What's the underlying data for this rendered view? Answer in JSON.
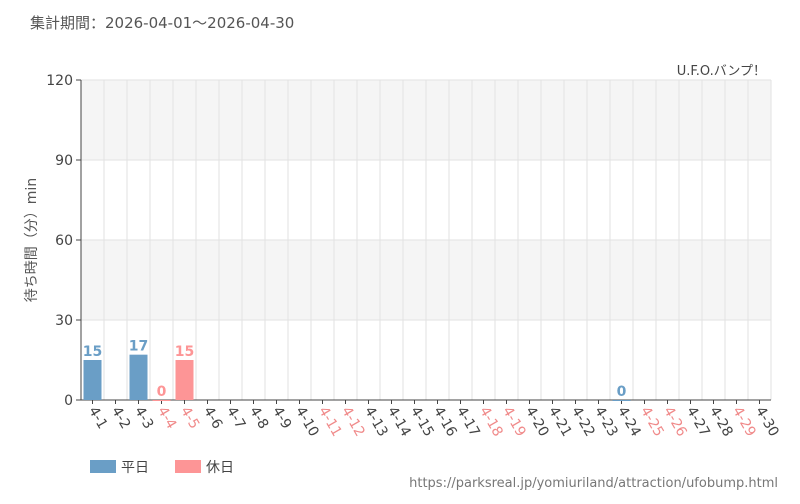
{
  "chart_data": {
    "type": "bar",
    "title": "集計期間：2026-04-01～2026-04-30",
    "subtitle": "U.F.O.バンプ！",
    "y_label": "待ち時間（分）min",
    "source": "https://parksreal.jp/yomiuriland/attraction/ufobump.html",
    "categories": [
      "4-1",
      "4-2",
      "4-3",
      "4-4",
      "4-5",
      "4-6",
      "4-7",
      "4-8",
      "4-9",
      "4-10",
      "4-11",
      "4-12",
      "4-13",
      "4-14",
      "4-15",
      "4-16",
      "4-17",
      "4-18",
      "4-19",
      "4-20",
      "4-21",
      "4-22",
      "4-23",
      "4-24",
      "4-25",
      "4-26",
      "4-27",
      "4-28",
      "4-29",
      "4-30"
    ],
    "category_label_colors": [
      "#444",
      "#444",
      "#444",
      "#f08a8a",
      "#f08a8a",
      "#444",
      "#444",
      "#444",
      "#444",
      "#444",
      "#f08a8a",
      "#f08a8a",
      "#444",
      "#444",
      "#444",
      "#444",
      "#444",
      "#f08a8a",
      "#f08a8a",
      "#444",
      "#444",
      "#444",
      "#444",
      "#444",
      "#f08a8a",
      "#f08a8a",
      "#444",
      "#444",
      "#f08a8a",
      "#444"
    ],
    "series": [
      {
        "name": "平日",
        "color": "#6a9ec6",
        "values": [
          15,
          null,
          17,
          null,
          null,
          null,
          null,
          null,
          null,
          null,
          null,
          null,
          null,
          null,
          null,
          null,
          null,
          null,
          null,
          null,
          null,
          null,
          null,
          0,
          null,
          null,
          null,
          null,
          null,
          null
        ]
      },
      {
        "name": "休日",
        "color": "#fd9596",
        "values": [
          null,
          null,
          null,
          0,
          15,
          null,
          null,
          null,
          null,
          null,
          null,
          null,
          null,
          null,
          null,
          null,
          null,
          null,
          null,
          null,
          null,
          null,
          null,
          null,
          null,
          null,
          null,
          null,
          null,
          null
        ]
      }
    ],
    "ylim": [
      0,
      120
    ],
    "yticks": [
      0,
      30,
      60,
      90,
      120
    ],
    "grid": true
  }
}
